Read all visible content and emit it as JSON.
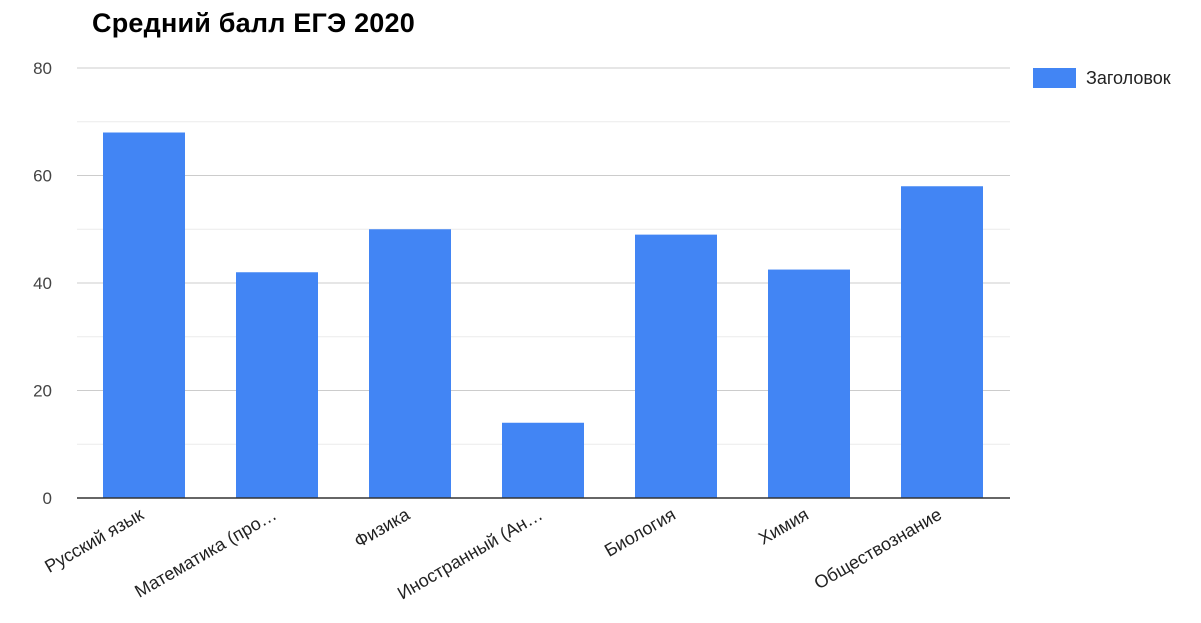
{
  "chart_data": {
    "type": "bar",
    "title": "Средний балл ЕГЭ 2020",
    "categories": [
      "Русский язык",
      "Математика (про…",
      "Физика",
      "Иностранный (Ан…",
      "Биология",
      "Химия",
      "Обществознание"
    ],
    "series": [
      {
        "name": "Заголовок",
        "values": [
          68,
          42,
          50,
          14,
          49,
          42.5,
          58
        ],
        "color": "#4285f4"
      }
    ],
    "ylim": [
      0,
      80
    ],
    "yticks": [
      0,
      20,
      40,
      60,
      80
    ],
    "grid": true,
    "legend_position": "right"
  }
}
